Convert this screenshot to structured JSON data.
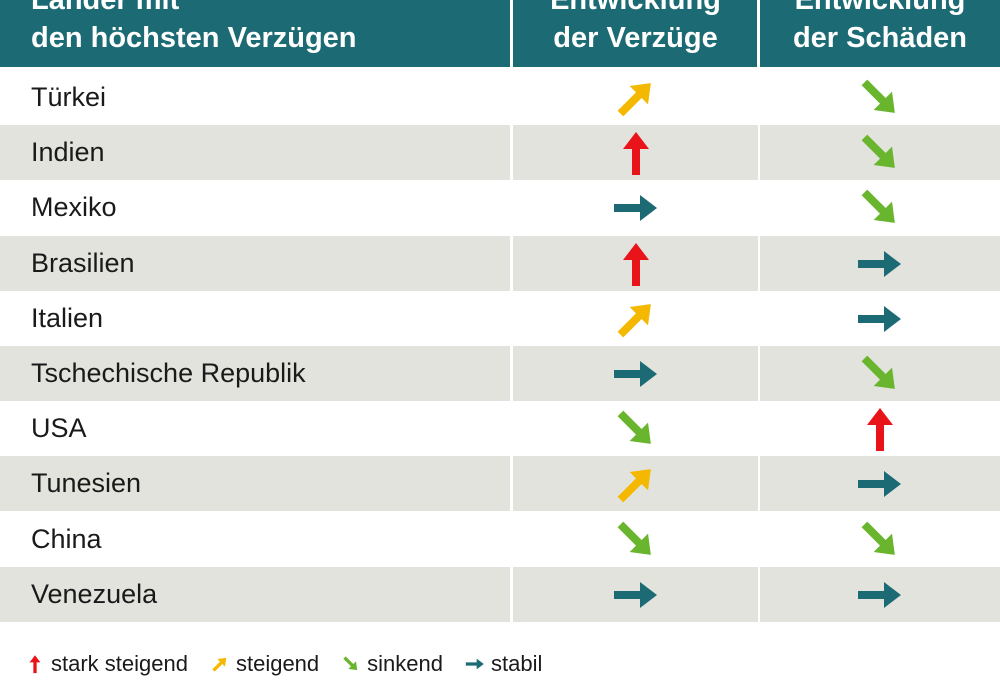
{
  "header": {
    "country_line1": "Länder mit",
    "country_line2": "den höchsten Verzügen",
    "delay_line1": "Entwicklung",
    "delay_line2": "der Verzüge",
    "damage_line1": "Entwicklung",
    "damage_line2": "der Schäden",
    "background_color": "#1c6a74"
  },
  "chart_data": {
    "type": "table",
    "columns": [
      "Länder mit den höchsten Verzügen",
      "Entwicklung der Verzüge",
      "Entwicklung der Schäden"
    ],
    "rows": [
      {
        "country": "Türkei",
        "delay": "steigend",
        "damage": "sinkend"
      },
      {
        "country": "Indien",
        "delay": "stark steigend",
        "damage": "sinkend"
      },
      {
        "country": "Mexiko",
        "delay": "stabil",
        "damage": "sinkend"
      },
      {
        "country": "Brasilien",
        "delay": "stark steigend",
        "damage": "stabil"
      },
      {
        "country": "Italien",
        "delay": "steigend",
        "damage": "stabil"
      },
      {
        "country": "Tschechische Republik",
        "delay": "stabil",
        "damage": "sinkend"
      },
      {
        "country": "USA",
        "delay": "sinkend",
        "damage": "stark steigend"
      },
      {
        "country": "Tunesien",
        "delay": "steigend",
        "damage": "stabil"
      },
      {
        "country": "China",
        "delay": "sinkend",
        "damage": "sinkend"
      },
      {
        "country": "Venezuela",
        "delay": "stabil",
        "damage": "stabil"
      }
    ],
    "trend_styles": {
      "stark steigend": {
        "color": "#e8141a",
        "icon": "arrow-up-icon"
      },
      "steigend": {
        "color": "#f5b800",
        "icon": "arrow-up-right-icon"
      },
      "sinkend": {
        "color": "#6ab52e",
        "icon": "arrow-down-right-icon"
      },
      "stabil": {
        "color": "#1c6a74",
        "icon": "arrow-right-icon"
      }
    }
  },
  "legend": [
    {
      "key": "stark steigend",
      "label": "stark steigend"
    },
    {
      "key": "steigend",
      "label": "steigend"
    },
    {
      "key": "sinkend",
      "label": "sinkend"
    },
    {
      "key": "stabil",
      "label": "stabil"
    }
  ]
}
